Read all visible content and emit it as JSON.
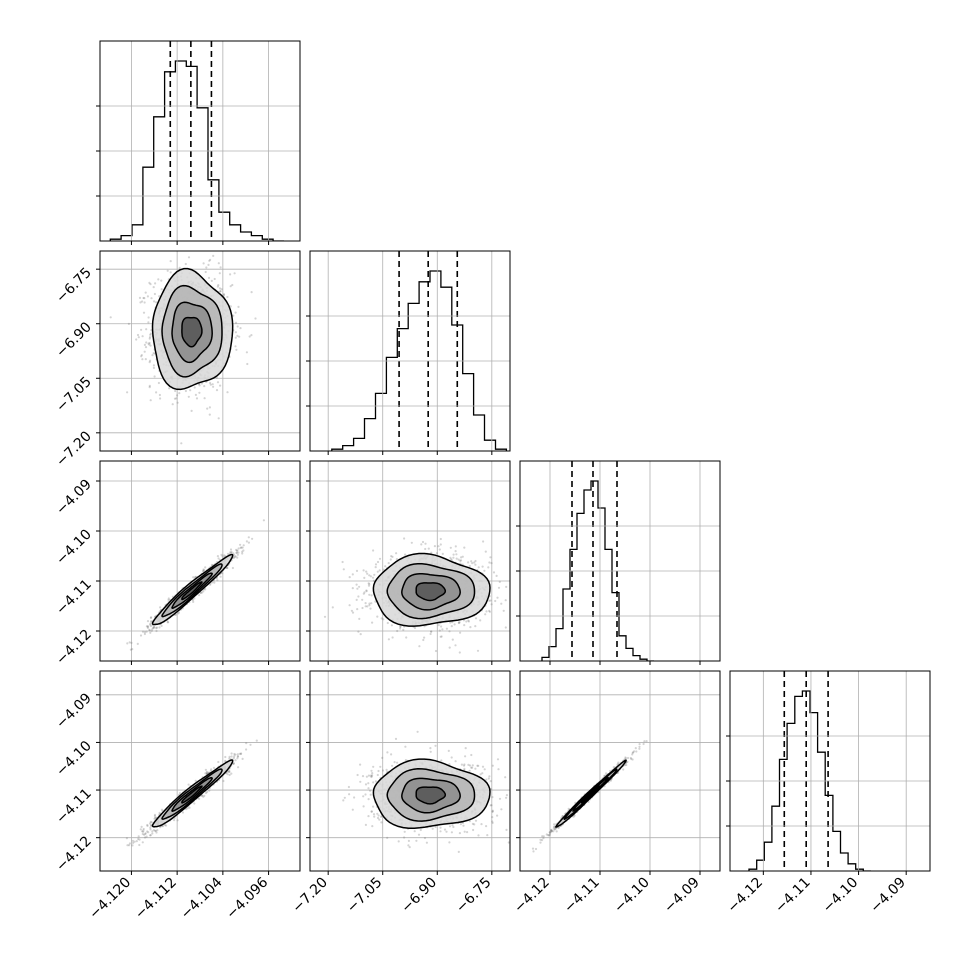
{
  "chart_data": {
    "type": "corner",
    "n_params": 4,
    "params": [
      {
        "range": [
          -4.1255,
          -4.0905
        ],
        "ticks": [
          -4.12,
          -4.112,
          -4.104,
          -4.096
        ],
        "tick_labels": [
          "−4.120",
          "−4.112",
          "−4.104",
          "−4.096"
        ],
        "mean": -4.1095,
        "sd": 0.0035,
        "quantiles": [
          -4.1132,
          -4.1096,
          -4.106
        ]
      },
      {
        "range": [
          -7.25,
          -6.7
        ],
        "ticks": [
          -7.2,
          -7.05,
          -6.9,
          -6.75
        ],
        "tick_labels": [
          "−7.20",
          "−7.05",
          "−6.90",
          "−6.75"
        ],
        "mean": -6.92,
        "sd": 0.08,
        "quantiles": [
          -7.005,
          -6.925,
          -6.845
        ]
      },
      {
        "range": [
          -4.126,
          -4.086
        ],
        "ticks": [
          -4.12,
          -4.11,
          -4.1,
          -4.09
        ],
        "tick_labels": [
          "−4.12",
          "−4.11",
          "−4.10",
          "−4.09"
        ],
        "mean": -4.112,
        "sd": 0.0035,
        "quantiles": [
          -4.1156,
          -4.1114,
          -4.1066
        ]
      },
      {
        "range": [
          -4.127,
          -4.085
        ],
        "ticks": [
          -4.12,
          -4.11,
          -4.1,
          -4.09
        ],
        "tick_labels": [
          "−4.12",
          "−4.11",
          "−4.10",
          "−4.09"
        ],
        "mean": -4.111,
        "sd": 0.0035,
        "quantiles": [
          -4.1156,
          -4.111,
          -4.1064
        ]
      }
    ],
    "histograms": [
      {
        "param": 0,
        "bin_edges": [
          -4.1237,
          -4.1218,
          -4.1199,
          -4.118,
          -4.1161,
          -4.1142,
          -4.1123,
          -4.1104,
          -4.1085,
          -4.1066,
          -4.1047,
          -4.1028,
          -4.1009,
          -4.099,
          -4.0971,
          -4.0952,
          -4.0933
        ],
        "counts": [
          1,
          3,
          9,
          41,
          69,
          94,
          100,
          97,
          74,
          34,
          16,
          9,
          5,
          3,
          1,
          0
        ]
      },
      {
        "param": 1,
        "bin_edges": [
          -7.19,
          -7.16,
          -7.13,
          -7.1,
          -7.07,
          -7.04,
          -7.01,
          -6.98,
          -6.95,
          -6.92,
          -6.89,
          -6.86,
          -6.83,
          -6.8,
          -6.77,
          -6.74,
          -6.71
        ],
        "counts": [
          1,
          3,
          7,
          18,
          32,
          52,
          68,
          82,
          94,
          100,
          91,
          70,
          43,
          20,
          6,
          1
        ]
      },
      {
        "param": 2,
        "bin_edges": [
          -4.1216,
          -4.1202,
          -4.1188,
          -4.1174,
          -4.116,
          -4.1146,
          -4.1132,
          -4.1118,
          -4.1104,
          -4.109,
          -4.1076,
          -4.1062,
          -4.1048,
          -4.1034,
          -4.102,
          -4.1006,
          -4.0992
        ],
        "counts": [
          2,
          8,
          18,
          40,
          62,
          82,
          95,
          100,
          85,
          62,
          38,
          14,
          7,
          3,
          1,
          0
        ]
      },
      {
        "param": 3,
        "bin_edges": [
          -4.123,
          -4.1214,
          -4.1198,
          -4.1182,
          -4.1166,
          -4.115,
          -4.1134,
          -4.1118,
          -4.1102,
          -4.1086,
          -4.107,
          -4.1054,
          -4.1038,
          -4.1022,
          -4.1006,
          -4.099,
          -4.0974
        ],
        "counts": [
          1,
          6,
          16,
          36,
          62,
          82,
          97,
          100,
          88,
          66,
          42,
          22,
          10,
          4,
          1,
          0
        ]
      }
    ],
    "joint_panels": [
      {
        "x_param": 0,
        "y_param": 1,
        "correlation": 0.0
      },
      {
        "x_param": 0,
        "y_param": 2,
        "correlation": 0.97
      },
      {
        "x_param": 1,
        "y_param": 2,
        "correlation": 0.0
      },
      {
        "x_param": 0,
        "y_param": 3,
        "correlation": 0.97
      },
      {
        "x_param": 1,
        "y_param": 3,
        "correlation": 0.0
      },
      {
        "x_param": 2,
        "y_param": 3,
        "correlation": 0.993
      }
    ],
    "contour_levels_sigma": [
      0.5,
      1.0,
      1.5,
      2.0
    ],
    "grid": true,
    "title": "",
    "legend": "none"
  }
}
